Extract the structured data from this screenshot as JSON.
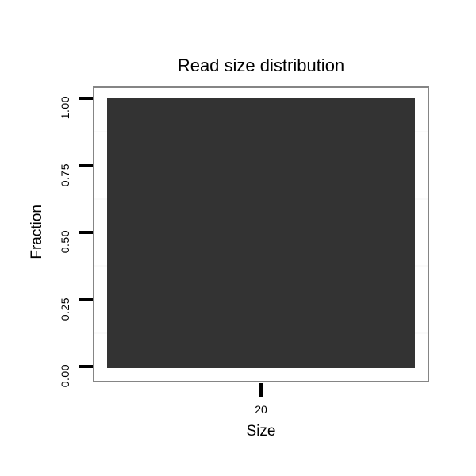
{
  "chart_data": {
    "type": "bar",
    "title": "Read size distribution",
    "xlabel": "Size",
    "ylabel": "Fraction",
    "x": [
      20
    ],
    "values": [
      1.0
    ],
    "x_tick_labels": [
      "20"
    ],
    "y_tick_labels": [
      "0.00",
      "0.25",
      "0.50",
      "0.75",
      "1.00"
    ],
    "y_tick_values": [
      0,
      0.25,
      0.5,
      0.75,
      1.0
    ],
    "ylim": [
      0,
      1
    ],
    "grid": "minor horizontal only",
    "legend": "none",
    "colors": {
      "bar_fill": "#333333",
      "panel_border": "#858585",
      "tick": "#000000",
      "minor_grid": "#fafafa",
      "text": "#000000",
      "background": "#ffffff"
    }
  }
}
